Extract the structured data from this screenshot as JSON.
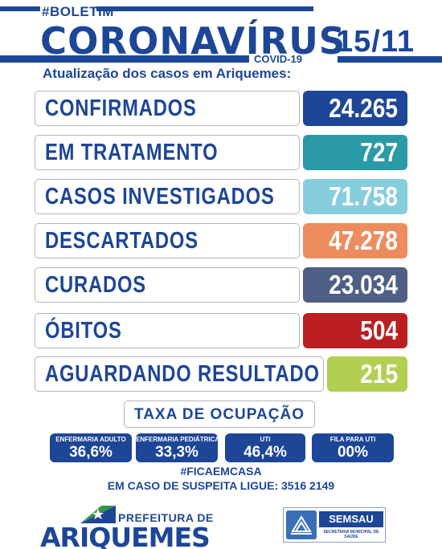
{
  "header": {
    "boletim": "#BOLETIM",
    "title": "CORONAVÍRUS",
    "covid": "COVID-19",
    "date": "15/11",
    "subtitle": "Atualização dos casos em Ariquemes:"
  },
  "rows": [
    {
      "label": "CONFIRMADOS",
      "value": "24.265",
      "color": "#1d4696"
    },
    {
      "label": "EM TRATAMENTO",
      "value": "727",
      "color": "#2a9aa6"
    },
    {
      "label": "CASOS INVESTIGADOS",
      "value": "71.758",
      "color": "#86cede"
    },
    {
      "label": "DESCARTADOS",
      "value": "47.278",
      "color": "#ec8d5e"
    },
    {
      "label": "CURADOS",
      "value": "23.034",
      "color": "#4e5f86"
    },
    {
      "label": "ÓBITOS",
      "value": "504",
      "color": "#bb1e21"
    },
    {
      "label": "AGUARDANDO RESULTADO",
      "value": "215",
      "color": "#b2cf52"
    }
  ],
  "occupancy": {
    "title": "TAXA DE OCUPAÇÃO",
    "items": [
      {
        "label": "ENFERMARIA ADULTO",
        "value": "36,6%"
      },
      {
        "label": "ENFERMARIA PEDIÁTRICA",
        "value": "33,3%"
      },
      {
        "label": "UTI",
        "value": "46,4%"
      },
      {
        "label": "FILA PARA UTI",
        "value": "00%"
      }
    ]
  },
  "footer": {
    "hashtag": "#FICAEMCASA",
    "phone": "EM CASO DE SUSPEITA LIGUE: 3516 2149",
    "prefeitura": "PREFEITURA DE",
    "city": "ARIQUEMES",
    "semsau": "SEMSAU",
    "semsau_sub": "SECRETARIA MUNICIPAL DE SAÚDE"
  }
}
